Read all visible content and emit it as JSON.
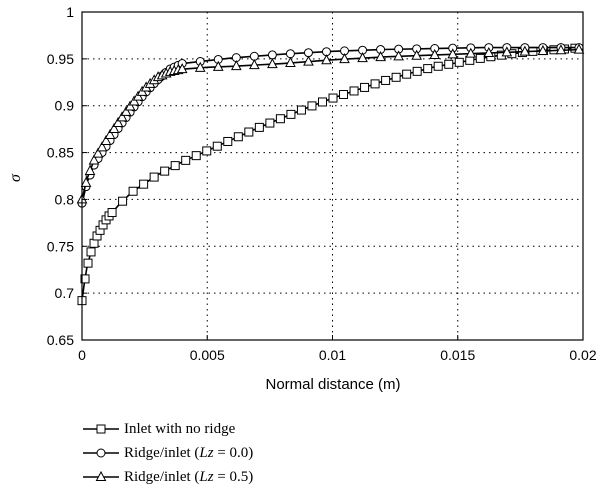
{
  "chart_data": {
    "type": "line",
    "xlabel": "Normal distance (m)",
    "ylabel": "σ",
    "xlim": [
      0,
      0.02
    ],
    "ylim": [
      0.65,
      1
    ],
    "xticks": [
      0,
      0.005,
      0.01,
      0.015,
      0.02
    ],
    "xtick_labels": [
      "0",
      "0.005",
      "0.01",
      "0.015",
      "0.02"
    ],
    "yticks": [
      0.65,
      0.7,
      0.75,
      0.8,
      0.85,
      0.9,
      0.95,
      1
    ],
    "ytick_labels": [
      "0.65",
      "0.7",
      "0.75",
      "0.8",
      "0.85",
      "0.9",
      "0.95",
      "1"
    ],
    "grid": "dotted",
    "legend_position": "below",
    "series": [
      {
        "name": "Inlet with no ridge",
        "marker": "square",
        "x": [
          0,
          0.0001,
          0.0002,
          0.0004,
          0.0006,
          0.0008,
          0.001,
          0.0015,
          0.002,
          0.003,
          0.004,
          0.005,
          0.006,
          0.007,
          0.008,
          0.009,
          0.01,
          0.011,
          0.012,
          0.013,
          0.014,
          0.015,
          0.016,
          0.017,
          0.018,
          0.019,
          0.02
        ],
        "values": [
          0.692,
          0.712,
          0.728,
          0.748,
          0.761,
          0.771,
          0.78,
          0.795,
          0.808,
          0.826,
          0.84,
          0.852,
          0.864,
          0.876,
          0.887,
          0.898,
          0.908,
          0.917,
          0.926,
          0.934,
          0.941,
          0.946,
          0.951,
          0.955,
          0.958,
          0.96,
          0.962
        ]
      },
      {
        "name": "Ridge/inlet (Lz = 0.0)",
        "marker": "circle",
        "x": [
          0,
          0.0002,
          0.0005,
          0.001,
          0.0015,
          0.002,
          0.0025,
          0.003,
          0.0035,
          0.004,
          0.005,
          0.006,
          0.008,
          0.01,
          0.012,
          0.014,
          0.016,
          0.018,
          0.02
        ],
        "values": [
          0.796,
          0.818,
          0.838,
          0.858,
          0.878,
          0.896,
          0.913,
          0.927,
          0.939,
          0.945,
          0.948,
          0.951,
          0.955,
          0.958,
          0.96,
          0.961,
          0.962,
          0.962,
          0.962
        ]
      },
      {
        "name": "Ridge/inlet (Lz = 0.5)",
        "marker": "triangle",
        "x": [
          0,
          0.0002,
          0.0005,
          0.001,
          0.0015,
          0.002,
          0.0025,
          0.003,
          0.0035,
          0.004,
          0.005,
          0.006,
          0.008,
          0.01,
          0.012,
          0.014,
          0.016,
          0.018,
          0.02
        ],
        "values": [
          0.8,
          0.822,
          0.843,
          0.864,
          0.884,
          0.902,
          0.918,
          0.93,
          0.936,
          0.939,
          0.941,
          0.942,
          0.945,
          0.949,
          0.952,
          0.954,
          0.956,
          0.958,
          0.96
        ]
      }
    ]
  },
  "legend": {
    "items": [
      {
        "prefix": "Inlet with no ridge",
        "italic": "",
        "suffix": ""
      },
      {
        "prefix": "Ridge/inlet (",
        "italic": "Lz",
        "suffix": " = 0.0)"
      },
      {
        "prefix": "Ridge/inlet (",
        "italic": "Lz",
        "suffix": " = 0.5)"
      }
    ]
  }
}
